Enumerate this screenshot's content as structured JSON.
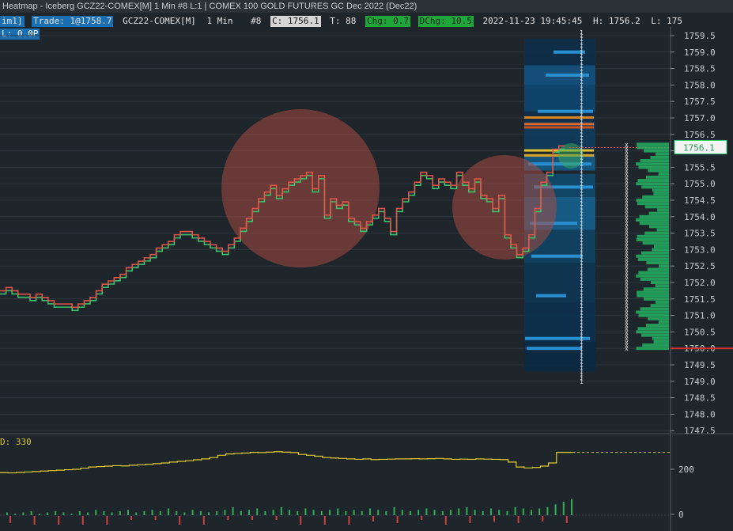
{
  "window": {
    "title": "Heatmap - Iceberg GCZ22-COMEX[M]  1 Min  #8 L:1 | COMEX 100 GOLD FUTURES GC Dec 2022 (Dec22)"
  },
  "infobar": {
    "lead": "im1]",
    "trade": "Trade: 1@1758.7",
    "symbol": "GCZ22-COMEX[M]",
    "interval": "1 Min",
    "bar": "#8",
    "close": "C: 1756.1",
    "ticks": "T: 88",
    "chg": "Chg: 0.7",
    "dchg": "DChg: 10.5",
    "datetime": "2022-11-23 19:45:45",
    "high": "H: 1756.2",
    "low": "L: 175",
    "pl": "L: 0.0P"
  },
  "price_axis": {
    "ticks": [
      "1759.5",
      "1759.0",
      "1758.5",
      "1758.0",
      "1757.5",
      "1757.0",
      "1756.5",
      "1756.0",
      "1755.5",
      "1755.0",
      "1754.5",
      "1754.0",
      "1753.5",
      "1753.0",
      "1752.5",
      "1752.0",
      "1751.5",
      "1751.0",
      "1750.5",
      "1750.0",
      "1749.5",
      "1749.0",
      "1748.5",
      "1748.0",
      "1747.5"
    ],
    "current_price": "1756.1",
    "marked_price": "1750.0"
  },
  "cvd": {
    "label": "D: 330",
    "axis_ticks": [
      "200",
      "0"
    ]
  },
  "colors": {
    "background": "#1e252b",
    "up_line": "#e05547",
    "down_line": "#39c46c",
    "cvd_line": "#e0cc2c",
    "current_price_box": "#2fd07a",
    "marker_line": "#d23030",
    "circle": "#a54a42"
  },
  "chart_data": {
    "type": "line",
    "title": "",
    "xlabel": "",
    "ylabel": "",
    "ylim": [
      1747.3,
      1759.8
    ],
    "series": [
      {
        "values": [
          1751.7,
          1751.8,
          1751.7,
          1751.6,
          1751.6,
          1751.5,
          1751.6,
          1751.5,
          1751.4,
          1751.3,
          1751.3,
          1751.3,
          1751.2,
          1751.3,
          1751.4,
          1751.5,
          1751.7,
          1751.9,
          1752.0,
          1752.1,
          1752.2,
          1752.4,
          1752.5,
          1752.6,
          1752.7,
          1752.8,
          1753.0,
          1753.1,
          1753.2,
          1753.4,
          1753.5,
          1753.5,
          1753.4,
          1753.3,
          1753.2,
          1753.1,
          1753.0,
          1752.9,
          1753.1,
          1753.3,
          1753.6,
          1753.9,
          1754.2,
          1754.5,
          1754.7,
          1754.9,
          1754.6,
          1754.8,
          1755.0,
          1755.1,
          1755.2,
          1755.3,
          1754.8,
          1755.2,
          1754.0,
          1754.5,
          1754.3,
          1754.4,
          1753.9,
          1753.8,
          1753.6,
          1753.8,
          1754.0,
          1754.2,
          1753.9,
          1753.5,
          1754.2,
          1754.5,
          1754.7,
          1755.0,
          1755.3,
          1755.2,
          1754.9,
          1755.1,
          1755.0,
          1754.9,
          1755.3,
          1755.0,
          1754.8,
          1755.1,
          1754.6,
          1754.5,
          1754.2,
          1754.6,
          1753.4,
          1753.1,
          1752.8,
          1753.0,
          1753.4,
          1754.2,
          1755.0,
          1755.3,
          1756.0,
          1756.1
        ]
      }
    ],
    "cvd_values": [
      185,
      184,
      186,
      188,
      190,
      192,
      194,
      196,
      198,
      200,
      205,
      210,
      212,
      214,
      216,
      215,
      218,
      220,
      222,
      225,
      228,
      232,
      235,
      238,
      242,
      246,
      252,
      262,
      268,
      270,
      272,
      275,
      274,
      276,
      278,
      276,
      274,
      266,
      262,
      258,
      252,
      250,
      248,
      246,
      244,
      246,
      243,
      244,
      245,
      246,
      246,
      247,
      246,
      247,
      248,
      246,
      244,
      245,
      244,
      246,
      245,
      244,
      243,
      232,
      210,
      206,
      208,
      214,
      228,
      275,
      275
    ],
    "volume_values": [
      2,
      1,
      2,
      3,
      1,
      2,
      3,
      2,
      1,
      3,
      2,
      4,
      3,
      2,
      3,
      4,
      2,
      3,
      4,
      3,
      5,
      3,
      2,
      4,
      3,
      2,
      3,
      4,
      6,
      3,
      4,
      5,
      3,
      4,
      6,
      4,
      3,
      5,
      4,
      3,
      4,
      5,
      3,
      4,
      3,
      5,
      4,
      3,
      6,
      4,
      3,
      4,
      5,
      4,
      3,
      4,
      5,
      6,
      4,
      3,
      5,
      4,
      3,
      6,
      5,
      4,
      5,
      6,
      8,
      10,
      12
    ]
  }
}
